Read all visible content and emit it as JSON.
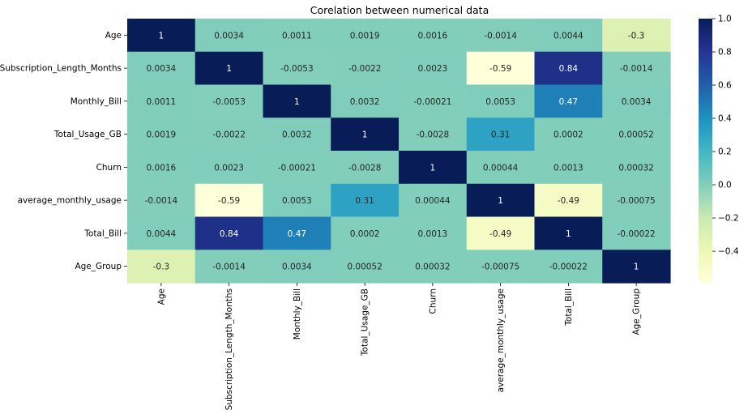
{
  "chart_data": {
    "type": "heatmap",
    "title": "Corelation between numerical data",
    "xlabel": "",
    "ylabel": "",
    "labels": [
      "Age",
      "Subscription_Length_Months",
      "Monthly_Bill",
      "Total_Usage_GB",
      "Churn",
      "average_monthly_usage",
      "Total_Bill",
      "Age_Group"
    ],
    "matrix": [
      [
        1,
        0.0034,
        0.0011,
        0.0019,
        0.0016,
        -0.0014,
        0.0044,
        -0.3
      ],
      [
        0.0034,
        1,
        -0.0053,
        -0.0022,
        0.0023,
        -0.59,
        0.84,
        -0.0014
      ],
      [
        0.0011,
        -0.0053,
        1,
        0.0032,
        -0.00021,
        0.0053,
        0.47,
        0.0034
      ],
      [
        0.0019,
        -0.0022,
        0.0032,
        1,
        -0.0028,
        0.31,
        0.0002,
        0.00052
      ],
      [
        0.0016,
        0.0023,
        -0.00021,
        -0.0028,
        1,
        0.00044,
        0.0013,
        0.00032
      ],
      [
        -0.0014,
        -0.59,
        0.0053,
        0.31,
        0.00044,
        1,
        -0.49,
        -0.00075
      ],
      [
        0.0044,
        0.84,
        0.47,
        0.0002,
        0.0013,
        -0.49,
        1,
        -0.00022
      ],
      [
        -0.3,
        -0.0014,
        0.0034,
        0.00052,
        0.00032,
        -0.00075,
        -0.00022,
        1
      ]
    ],
    "cell_labels": [
      [
        "1",
        "0.0034",
        "0.0011",
        "0.0019",
        "0.0016",
        "-0.0014",
        "0.0044",
        "-0.3"
      ],
      [
        "0.0034",
        "1",
        "-0.0053",
        "-0.0022",
        "0.0023",
        "-0.59",
        "0.84",
        "-0.0014"
      ],
      [
        "0.0011",
        "-0.0053",
        "1",
        "0.0032",
        "-0.00021",
        "0.0053",
        "0.47",
        "0.0034"
      ],
      [
        "0.0019",
        "-0.0022",
        "0.0032",
        "1",
        "-0.0028",
        "0.31",
        "0.0002",
        "0.00052"
      ],
      [
        "0.0016",
        "0.0023",
        "-0.00021",
        "-0.0028",
        "1",
        "0.00044",
        "0.0013",
        "0.00032"
      ],
      [
        "-0.0014",
        "-0.59",
        "0.0053",
        "0.31",
        "0.00044",
        "1",
        "-0.49",
        "-0.00075"
      ],
      [
        "0.0044",
        "0.84",
        "0.47",
        "0.0002",
        "0.0013",
        "-0.49",
        "1",
        "-0.00022"
      ],
      [
        "-0.3",
        "-0.0014",
        "0.0034",
        "0.00052",
        "0.00032",
        "-0.00075",
        "-0.00022",
        "1"
      ]
    ],
    "colormap": "YlGnBu",
    "value_range": [
      -0.59,
      1.0
    ],
    "colorbar_ticks": [
      {
        "value": 1.0,
        "label": "1.0"
      },
      {
        "value": 0.8,
        "label": "0.8"
      },
      {
        "value": 0.6,
        "label": "0.6"
      },
      {
        "value": 0.4,
        "label": "0.4"
      },
      {
        "value": 0.2,
        "label": "0.2"
      },
      {
        "value": 0.0,
        "label": "0.0"
      },
      {
        "value": -0.2,
        "label": "−0.2"
      },
      {
        "value": -0.4,
        "label": "−0.4"
      }
    ],
    "grid": false,
    "legend": "colorbar-right"
  }
}
